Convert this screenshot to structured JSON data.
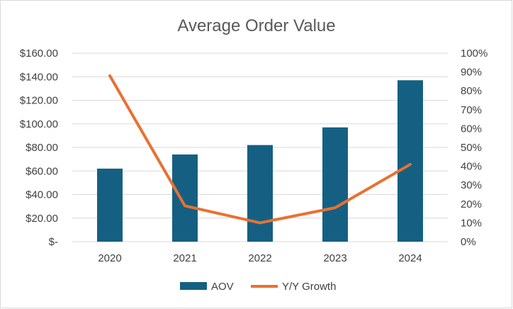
{
  "chart_data": {
    "type": "bar",
    "title": "Average Order Value",
    "categories": [
      "2020",
      "2021",
      "2022",
      "2023",
      "2024"
    ],
    "series": [
      {
        "name": "AOV",
        "type": "bar",
        "axis": "left",
        "values": [
          62,
          74,
          82,
          97,
          137
        ],
        "color": "#156082"
      },
      {
        "name": "Y/Y Growth",
        "type": "line",
        "axis": "right",
        "values": [
          0.88,
          0.19,
          0.1,
          0.18,
          0.41
        ],
        "color": "#e97132"
      }
    ],
    "y_left": {
      "min": 0,
      "max": 160,
      "step": 20,
      "tick_labels": [
        "$-",
        "$20.00",
        "$40.00",
        "$60.00",
        "$80.00",
        "$100.00",
        "$120.00",
        "$140.00",
        "$160.00"
      ]
    },
    "y_right": {
      "min": 0,
      "max": 1.0,
      "step": 0.1,
      "tick_labels": [
        "0%",
        "10%",
        "20%",
        "30%",
        "40%",
        "50%",
        "60%",
        "70%",
        "80%",
        "90%",
        "100%"
      ]
    },
    "grid": true,
    "legend_position": "bottom"
  }
}
